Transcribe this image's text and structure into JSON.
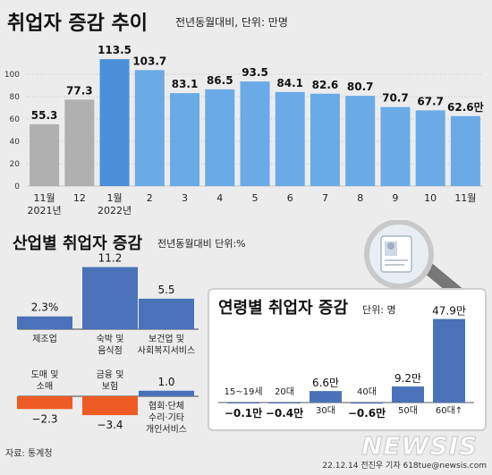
{
  "top": {
    "title": "취업자 증감 추이",
    "note": "전년동월대비, 단위: 만명",
    "chart_data": {
      "type": "bar",
      "categories": [
        "11월 2021년",
        "12",
        "1월 2022년",
        "2",
        "3",
        "4",
        "5",
        "6",
        "7",
        "8",
        "9",
        "10",
        "11월"
      ],
      "values": [
        55.3,
        77.3,
        113.5,
        103.7,
        83.1,
        86.5,
        93.5,
        84.1,
        82.6,
        80.7,
        70.7,
        67.7,
        62.6
      ],
      "value_labels": [
        "55.3",
        "77.3",
        "113.5",
        "103.7",
        "83.1",
        "86.5",
        "93.5",
        "84.1",
        "82.6",
        "80.7",
        "70.7",
        "67.7",
        "62.6만"
      ],
      "xtick_line1": [
        "11월",
        "12",
        "1월",
        "2",
        "3",
        "4",
        "5",
        "6",
        "7",
        "8",
        "9",
        "10",
        "11월"
      ],
      "xtick_line2": [
        "2021년",
        "",
        "2022년",
        "",
        "",
        "",
        "",
        "",
        "",
        "",
        "",
        "",
        ""
      ],
      "yticks": [
        "0",
        "20",
        "40",
        "60",
        "80",
        "100"
      ],
      "ylim": [
        0,
        120
      ],
      "colors": [
        "#b0b0b0",
        "#b0b0b0",
        "#4a90d9",
        "#6aaae6",
        "#6aaae6",
        "#6aaae6",
        "#6aaae6",
        "#6aaae6",
        "#6aaae6",
        "#6aaae6",
        "#6aaae6",
        "#6aaae6",
        "#6aaae6"
      ]
    }
  },
  "industry": {
    "title": "산업별 취업자 증감",
    "note": "전년동월대비 단위:%",
    "chart_data": {
      "type": "bar",
      "groups": [
        {
          "labels": [
            "제조업"
          ],
          "value": 2.3,
          "value_label": "2.3%"
        },
        {
          "labels": [
            "숙박 및",
            "음식점"
          ],
          "value": 11.2,
          "value_label": "11.2"
        },
        {
          "labels": [
            "보건업 및",
            "사회복지서비스"
          ],
          "value": 5.5,
          "value_label": "5.5"
        },
        {
          "labels": [
            "도매 및",
            "소매"
          ],
          "value": -2.3,
          "value_label": "−2.3"
        },
        {
          "labels": [
            "금융 및",
            "보험"
          ],
          "value": -3.4,
          "value_label": "−3.4"
        },
        {
          "labels": [
            "협회·단체",
            "수리·기타",
            "개인서비스"
          ],
          "value": 1.0,
          "value_label": "1.0"
        }
      ],
      "colors": {
        "positive": "#4a72b8",
        "negative": "#ef5b25"
      }
    }
  },
  "age": {
    "title": "연령별 취업자 증감",
    "unit": "단위: 명",
    "chart_data": {
      "type": "bar",
      "categories": [
        "15~19세",
        "20대",
        "30대",
        "40대",
        "50대",
        "60대↑"
      ],
      "values": [
        -0.1,
        -0.4,
        6.6,
        -0.6,
        9.2,
        47.9
      ],
      "value_labels": [
        "−0.1만",
        "−0.4만",
        "6.6만",
        "−0.6만",
        "9.2만",
        "47.9만"
      ],
      "color": "#4a72b8"
    }
  },
  "footer": {
    "source": "자료: 통계청",
    "credit": "22.12.14 전진우 기자 618tue@newsis.com",
    "watermark": "NEWSIS"
  }
}
